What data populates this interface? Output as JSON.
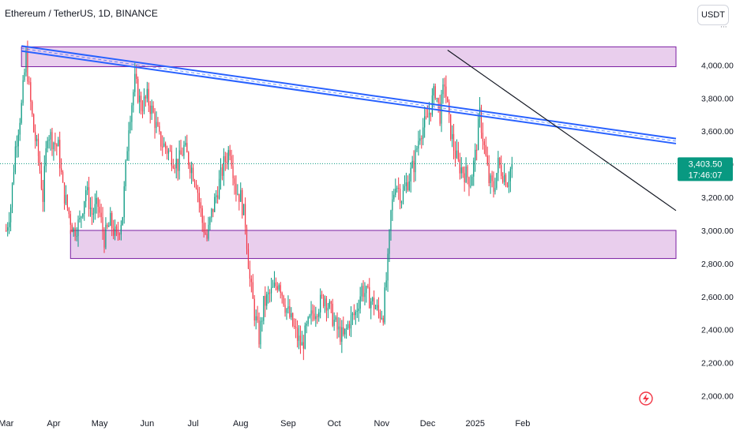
{
  "header": {
    "symbol_title": "Ethereum / TetherUS, 1D, BINANCE"
  },
  "currency_button": {
    "label": "USDT"
  },
  "price_badge": {
    "price": "3,403.50",
    "countdown": "17:46:07",
    "color": "#089981"
  },
  "colors": {
    "up": "#089981",
    "down": "#f23645",
    "zone_fill": "#e1bee7",
    "zone_border": "#7b1fa2",
    "channel": "#2962ff",
    "trend": "#131722",
    "axis_text": "#131722"
  },
  "chart_data": {
    "type": "candlestick",
    "title": "Ethereum / TetherUS, 1D, BINANCE",
    "ylim": [
      1950,
      4250
    ],
    "y_ticks": [
      "2,000.00",
      "2,200.00",
      "2,400.00",
      "2,600.00",
      "2,800.00",
      "3,000.00",
      "3,200.00",
      "3,400.00",
      "3,600.00",
      "3,800.00",
      "4,000.00"
    ],
    "y_tick_values": [
      2000,
      2200,
      2400,
      2600,
      2800,
      3000,
      3200,
      3400,
      3600,
      3800,
      4000
    ],
    "x_ticks": [
      "Mar",
      "Apr",
      "May",
      "Jun",
      "Jul",
      "Aug",
      "Sep",
      "Oct",
      "Nov",
      "Dec",
      "2025",
      "Feb"
    ],
    "x_tick_days": [
      0,
      31,
      61,
      92,
      122,
      153,
      184,
      214,
      245,
      275,
      306,
      337
    ],
    "last_price": 3403.5,
    "price_path": [
      [
        0,
        3000
      ],
      [
        3,
        3150
      ],
      [
        6,
        3500
      ],
      [
        10,
        3750
      ],
      [
        13,
        4050
      ],
      [
        15,
        3850
      ],
      [
        18,
        3600
      ],
      [
        21,
        3450
      ],
      [
        24,
        3200
      ],
      [
        27,
        3600
      ],
      [
        30,
        3550
      ],
      [
        34,
        3500
      ],
      [
        37,
        3250
      ],
      [
        41,
        3100
      ],
      [
        44,
        3000
      ],
      [
        48,
        3050
      ],
      [
        52,
        3250
      ],
      [
        56,
        3100
      ],
      [
        60,
        3150
      ],
      [
        64,
        2950
      ],
      [
        68,
        3050
      ],
      [
        72,
        2950
      ],
      [
        76,
        3100
      ],
      [
        80,
        3650
      ],
      [
        84,
        3900
      ],
      [
        88,
        3750
      ],
      [
        92,
        3800
      ],
      [
        96,
        3700
      ],
      [
        100,
        3550
      ],
      [
        104,
        3500
      ],
      [
        108,
        3450
      ],
      [
        112,
        3400
      ],
      [
        116,
        3500
      ],
      [
        120,
        3400
      ],
      [
        124,
        3300
      ],
      [
        128,
        3050
      ],
      [
        131,
        2950
      ],
      [
        134,
        3100
      ],
      [
        138,
        3250
      ],
      [
        142,
        3400
      ],
      [
        146,
        3500
      ],
      [
        150,
        3250
      ],
      [
        153,
        3200
      ],
      [
        156,
        3050
      ],
      [
        159,
        2700
      ],
      [
        162,
        2500
      ],
      [
        165,
        2350
      ],
      [
        168,
        2550
      ],
      [
        171,
        2600
      ],
      [
        175,
        2650
      ],
      [
        178,
        2700
      ],
      [
        182,
        2550
      ],
      [
        186,
        2450
      ],
      [
        190,
        2350
      ],
      [
        193,
        2300
      ],
      [
        196,
        2400
      ],
      [
        200,
        2500
      ],
      [
        204,
        2550
      ],
      [
        208,
        2600
      ],
      [
        212,
        2500
      ],
      [
        216,
        2400
      ],
      [
        220,
        2350
      ],
      [
        224,
        2450
      ],
      [
        228,
        2500
      ],
      [
        232,
        2650
      ],
      [
        236,
        2600
      ],
      [
        240,
        2550
      ],
      [
        243,
        2500
      ],
      [
        246,
        2500
      ],
      [
        249,
        2800
      ],
      [
        251,
        3100
      ],
      [
        254,
        3300
      ],
      [
        258,
        3200
      ],
      [
        262,
        3300
      ],
      [
        266,
        3400
      ],
      [
        270,
        3600
      ],
      [
        274,
        3650
      ],
      [
        277,
        3750
      ],
      [
        280,
        3850
      ],
      [
        283,
        3700
      ],
      [
        286,
        3900
      ],
      [
        289,
        3650
      ],
      [
        292,
        3500
      ],
      [
        295,
        3400
      ],
      [
        299,
        3350
      ],
      [
        303,
        3300
      ],
      [
        306,
        3450
      ],
      [
        309,
        3700
      ],
      [
        312,
        3500
      ],
      [
        315,
        3300
      ],
      [
        318,
        3250
      ],
      [
        321,
        3400
      ],
      [
        324,
        3350
      ],
      [
        327,
        3300
      ],
      [
        330,
        3403.5
      ]
    ],
    "zones": [
      {
        "name": "resistance",
        "day_start": 10,
        "day_end": 437,
        "price_low": 3990,
        "price_high": 4110
      },
      {
        "name": "support",
        "day_start": 42,
        "day_end": 437,
        "price_low": 2830,
        "price_high": 3000
      }
    ],
    "channel": {
      "from": [
        10,
        4100
      ],
      "to": [
        437,
        3540
      ],
      "width": 30
    },
    "trendline": {
      "from": [
        288,
        4090
      ],
      "to": [
        437,
        3120
      ]
    },
    "last_price_line": true,
    "grid": false
  }
}
